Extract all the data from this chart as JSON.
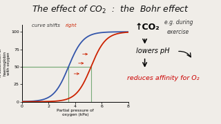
{
  "background_color": "#f0ede8",
  "blue_inflection": 3.5,
  "red_inflection": 5.2,
  "steepness": 1.8,
  "xlim": [
    0,
    8
  ],
  "ylim": [
    0,
    110
  ],
  "xticks": [
    0,
    2,
    4,
    6,
    8
  ],
  "yticks": [
    0,
    25,
    50,
    75,
    100
  ],
  "green_hline_y": 50,
  "green_vline_blue": 3.5,
  "green_vline_red": 5.2,
  "xlabel": "Partial pressure of\noxygen (kPa)",
  "ylabel": "% Saturation of\nhaemoglobin\nwith oxygen",
  "title": "The effect of CO$_2$  :  the  Bohr effect",
  "curve_label": "curve shifts",
  "curve_label_right": "right",
  "blue_color": "#3355aa",
  "red_color": "#cc2200",
  "green_color": "#77aa77",
  "text_co2": "↑CO₂",
  "text_eg": "e.g. during",
  "text_exercise": "exercise",
  "text_lowers": "lowers pH",
  "text_reduces": "reduces affinity for O₂",
  "reduces_color": "#cc0000"
}
